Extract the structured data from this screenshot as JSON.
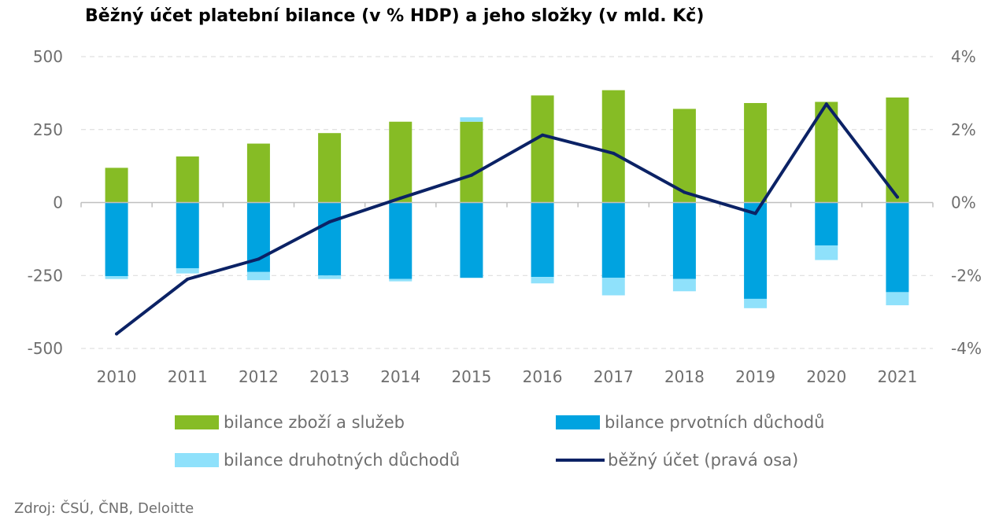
{
  "chart_data": {
    "type": "bar",
    "title": "Běžný účet platební bilance (v % HDP) a jeho složky (v mld. Kč)",
    "categories": [
      "2010",
      "2011",
      "2012",
      "2013",
      "2014",
      "2015",
      "2016",
      "2017",
      "2018",
      "2019",
      "2020",
      "2021"
    ],
    "stacked": true,
    "series": [
      {
        "name": "bilance zboží a služeb",
        "type": "bar",
        "axis": "left",
        "color": "#86bc25",
        "values": [
          119,
          158,
          202,
          238,
          277,
          277,
          367,
          385,
          321,
          341,
          345,
          360
        ]
      },
      {
        "name": "bilance prvotních důchodů",
        "type": "bar",
        "axis": "left",
        "color": "#00a3e0",
        "values": [
          -252,
          -225,
          -238,
          -250,
          -262,
          -258,
          -255,
          -258,
          -262,
          -330,
          -147,
          -307
        ]
      },
      {
        "name": "bilance druhotných důchodů",
        "type": "bar",
        "axis": "left",
        "color": "#8fe1fb",
        "values": [
          -10,
          -18,
          -28,
          -12,
          -8,
          15,
          -22,
          -60,
          -42,
          -32,
          -50,
          -45
        ]
      },
      {
        "name": "běžný účet (pravá osa)",
        "type": "line",
        "axis": "right",
        "color": "#0b2265",
        "values": [
          -3.6,
          -2.1,
          -1.55,
          -0.53,
          0.12,
          0.75,
          1.85,
          1.35,
          0.28,
          -0.3,
          2.7,
          0.15
        ]
      }
    ],
    "y_left": {
      "min": -500,
      "max": 500,
      "ticks": [
        500,
        250,
        0,
        -250,
        -500
      ],
      "tick_labels": [
        "500",
        "250",
        "0",
        "-250",
        "-500"
      ]
    },
    "y_right": {
      "min": -4,
      "max": 4,
      "ticks": [
        4,
        2,
        0,
        -2,
        -4
      ],
      "tick_labels": [
        "4%",
        "2%",
        "0%",
        "-2%",
        "-4%"
      ]
    },
    "grid": true,
    "legend_position": "bottom",
    "source": "Zdroj: ČSÚ, ČNB, Deloitte"
  }
}
